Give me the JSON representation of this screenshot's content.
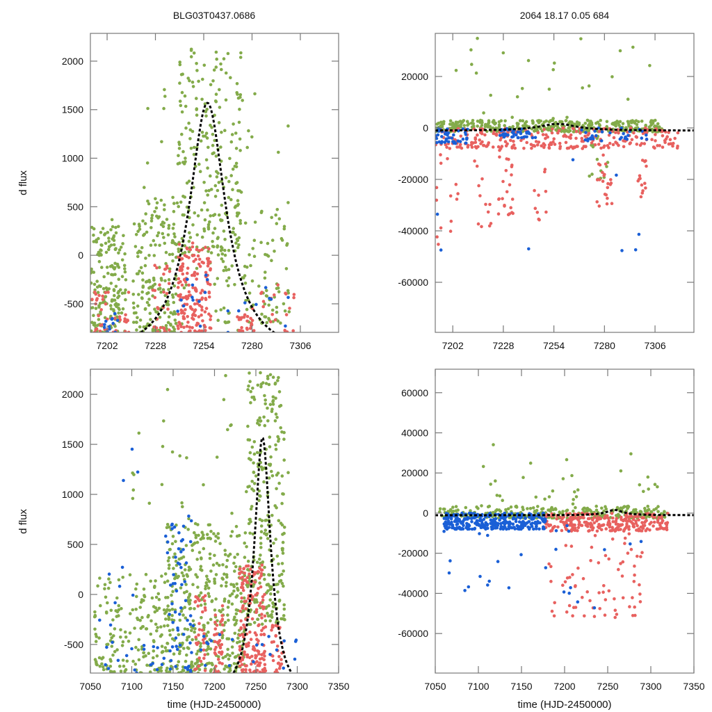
{
  "titles": {
    "left": "BLG03T0437.0686",
    "right": "2064  18.17  0.05  684"
  },
  "colors": {
    "green": "#83ab4a",
    "red": "#e8615f",
    "blue": "#1a5fd6",
    "fit": "#000000"
  },
  "chart_data": [
    {
      "id": "top-left",
      "type": "scatter",
      "title": "BLG03T0437.0686",
      "xlabel": "",
      "ylabel": "d flux",
      "xlim": [
        7193,
        7326.6
      ],
      "ylim": [
        -794,
        2286
      ],
      "xticks": [
        7202,
        7228,
        7254,
        7280,
        7306
      ],
      "yticks": [
        -500,
        0,
        500,
        1000,
        1500,
        2000
      ],
      "fit": {
        "t0": 7256,
        "peak": 1570,
        "tE": 12,
        "base": -1060
      },
      "series": [
        {
          "name": "green",
          "clusters": [
            [
              7193,
              7212,
              -794,
              300,
              170
            ],
            [
              7216,
              7240,
              -794,
              600,
              190
            ],
            [
              7240,
              7275,
              0,
              2200,
              230
            ],
            [
              7260,
              7300,
              -700,
              500,
              110
            ],
            [
              7193,
              7300,
              -794,
              2000,
              45
            ]
          ]
        },
        {
          "name": "red",
          "clusters": [
            [
              7193,
              7214,
              -794,
              -300,
              40
            ],
            [
              7226,
              7236,
              -794,
              -100,
              30
            ],
            [
              7240,
              7258,
              -794,
              130,
              170
            ],
            [
              7272,
              7282,
              -794,
              -500,
              25
            ],
            [
              7283,
              7303,
              -794,
              -300,
              20
            ]
          ]
        },
        {
          "name": "blue",
          "clusters": [
            [
              7200,
              7212,
              -794,
              -600,
              12
            ],
            [
              7240,
              7260,
              -794,
              -200,
              12
            ],
            [
              7265,
              7300,
              -794,
              -300,
              10
            ]
          ]
        }
      ]
    },
    {
      "id": "top-right",
      "type": "scatter",
      "title": "2064  18.17  0.05  684",
      "xlabel": "",
      "ylabel": "",
      "xlim": [
        7193,
        7326
      ],
      "ylim": [
        -79459,
        36757
      ],
      "xticks": [
        7202,
        7228,
        7254,
        7280,
        7306
      ],
      "yticks": [
        -60000,
        -40000,
        -20000,
        0,
        20000
      ],
      "fit": {
        "t0": 7256,
        "peak": 1570,
        "tE": 12,
        "base": -1060
      },
      "series": [
        {
          "name": "green",
          "clusters": [
            [
              7193,
              7310,
              -1500,
              3000,
              380
            ],
            [
              7193,
              7310,
              3000,
              35000,
              25
            ],
            [
              7270,
              7282,
              -20000,
              -2000,
              15
            ]
          ]
        },
        {
          "name": "red",
          "clusters": [
            [
              7193,
              7318,
              -8000,
              0,
              260
            ],
            [
              7193,
              7205,
              -46000,
              -10000,
              14
            ],
            [
              7212,
              7222,
              -40000,
              -10000,
              12
            ],
            [
              7225,
              7234,
              -34000,
              -5000,
              25
            ],
            [
              7242,
              7250,
              -36000,
              -10000,
              10
            ],
            [
              7276,
              7284,
              -34000,
              -10000,
              22
            ],
            [
              7297,
              7302,
              -28000,
              -12000,
              14
            ]
          ]
        },
        {
          "name": "blue",
          "clusters": [
            [
              7193,
              7210,
              -6000,
              0,
              45
            ],
            [
              7226,
              7245,
              -4000,
              0,
              40
            ],
            [
              7268,
              7302,
              -5000,
              0,
              30
            ],
            [
              7193,
              7305,
              -48000,
              -10000,
              8
            ]
          ]
        }
      ]
    },
    {
      "id": "bottom-left",
      "type": "scatter",
      "title": "",
      "xlabel": "time (HJD-2450000)",
      "ylabel": "d flux",
      "xlim": [
        7050,
        7350
      ],
      "ylim": [
        -786,
        2251
      ],
      "xticks": [
        7050,
        7100,
        7150,
        7200,
        7250,
        7300,
        7350
      ],
      "yticks": [
        -500,
        0,
        500,
        1000,
        1500,
        2000
      ],
      "fit": {
        "t0": 7258,
        "peak": 1570,
        "tE": 12,
        "base": -1060
      },
      "series": [
        {
          "name": "green",
          "clusters": [
            [
              7055,
              7140,
              -786,
              200,
              170
            ],
            [
              7140,
              7240,
              -786,
              700,
              420
            ],
            [
              7240,
              7285,
              -300,
              2220,
              260
            ],
            [
              7100,
              7300,
              700,
              2200,
              35
            ]
          ]
        },
        {
          "name": "red",
          "clusters": [
            [
              7175,
              7190,
              -786,
              0,
              35
            ],
            [
              7198,
              7210,
              -786,
              -100,
              40
            ],
            [
              7230,
              7262,
              -786,
              300,
              170
            ],
            [
              7268,
              7285,
              -786,
              -300,
              30
            ]
          ]
        },
        {
          "name": "blue",
          "clusters": [
            [
              7060,
              7140,
              -786,
              300,
              25
            ],
            [
              7140,
              7175,
              -786,
              800,
              60
            ],
            [
              7176,
              7300,
              -786,
              -300,
              20
            ],
            [
              7088,
              7165,
              1100,
              1800,
              3
            ]
          ]
        }
      ]
    },
    {
      "id": "bottom-right",
      "type": "scatter",
      "title": "",
      "xlabel": "time (HJD-2450000)",
      "ylabel": "",
      "xlim": [
        7050,
        7350
      ],
      "ylim": [
        -79700,
        71700
      ],
      "xticks": [
        7050,
        7100,
        7150,
        7200,
        7250,
        7300,
        7350
      ],
      "yticks": [
        -60000,
        -40000,
        -20000,
        0,
        20000,
        40000,
        60000
      ],
      "fit": {
        "t0": 7258,
        "peak": 1570,
        "tE": 12,
        "base": -1060
      },
      "series": [
        {
          "name": "green",
          "clusters": [
            [
              7055,
              7320,
              -2500,
              3500,
              320
            ],
            [
              7100,
              7310,
              3500,
              36000,
              30
            ]
          ]
        },
        {
          "name": "red",
          "clusters": [
            [
              7178,
              7320,
              -9000,
              0,
              260
            ],
            [
              7178,
              7290,
              -52000,
              -10000,
              70
            ]
          ]
        },
        {
          "name": "blue",
          "clusters": [
            [
              7060,
              7178,
              -8000,
              0,
              300
            ],
            [
              7060,
              7180,
              -40000,
              -8000,
              14
            ],
            [
              7185,
              7300,
              -48000,
              -2000,
              12
            ]
          ]
        }
      ]
    }
  ]
}
